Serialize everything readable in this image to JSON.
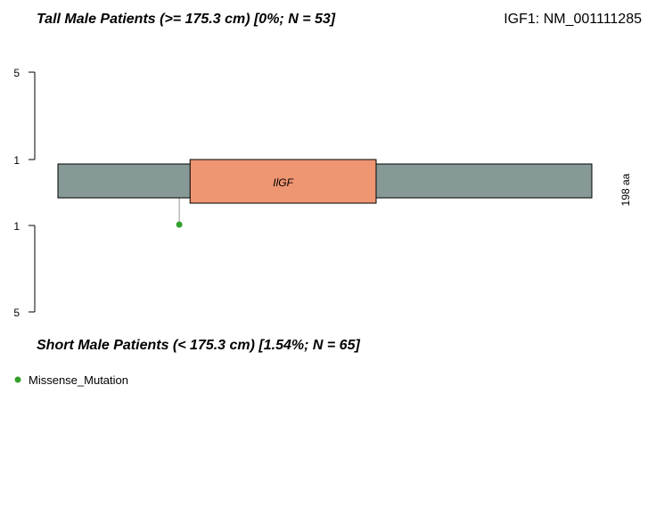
{
  "top_title": "Tall Male Patients (>= 175.3 cm) [0%; N = 53]",
  "gene_label": "IGF1: NM_001111285",
  "bottom_title": "Short Male Patients (< 175.3 cm) [1.54%; N = 65]",
  "protein_length_label": "198 aa",
  "colors": {
    "protein": "#869996",
    "domain": "#EE9572",
    "missense": "#33A02C",
    "lollipop_stem": "#999999"
  },
  "chart_data": {
    "type": "lollipop",
    "protein_length": 198,
    "top_axis_ticks": [
      "5",
      "1"
    ],
    "bottom_axis_ticks": [
      "1",
      "5"
    ],
    "domains": [
      {
        "name": "IlGF",
        "start": 49,
        "end": 118
      }
    ],
    "mutations_top": [],
    "mutations_bottom": [
      {
        "position": 45,
        "count": 1,
        "type": "Missense_Mutation"
      }
    ],
    "legend": [
      {
        "label": "Missense_Mutation",
        "color": "#33A02C"
      }
    ]
  }
}
